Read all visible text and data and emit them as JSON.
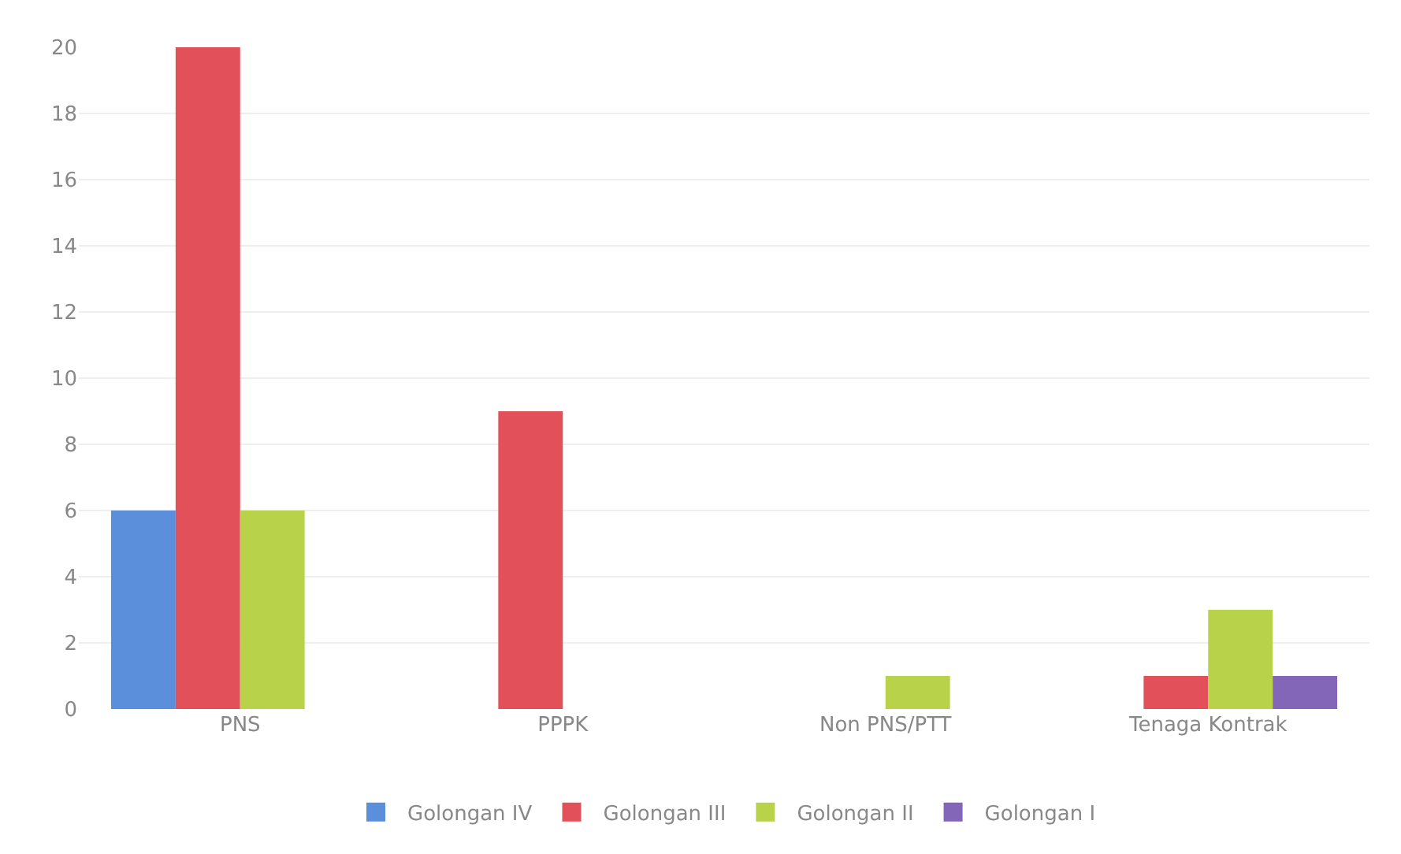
{
  "chart_data": {
    "type": "bar",
    "categories": [
      "PNS",
      "PPPK",
      "Non PNS/PTT",
      "Tenaga Kontrak"
    ],
    "series": [
      {
        "name": "Golongan IV",
        "color": "#5b8fdc",
        "values": [
          6,
          0,
          0,
          0
        ]
      },
      {
        "name": "Golongan III",
        "color": "#e2505a",
        "values": [
          20,
          9,
          0,
          1
        ]
      },
      {
        "name": "Golongan II",
        "color": "#b8d24a",
        "values": [
          6,
          0,
          1,
          3
        ]
      },
      {
        "name": "Golongan I",
        "color": "#8466b8",
        "values": [
          0,
          0,
          0,
          1
        ]
      }
    ],
    "ylim": [
      0,
      20
    ],
    "yticks": [
      0,
      2,
      4,
      6,
      8,
      10,
      12,
      14,
      16,
      18,
      20
    ],
    "grid": "y",
    "legend": "bottom"
  }
}
